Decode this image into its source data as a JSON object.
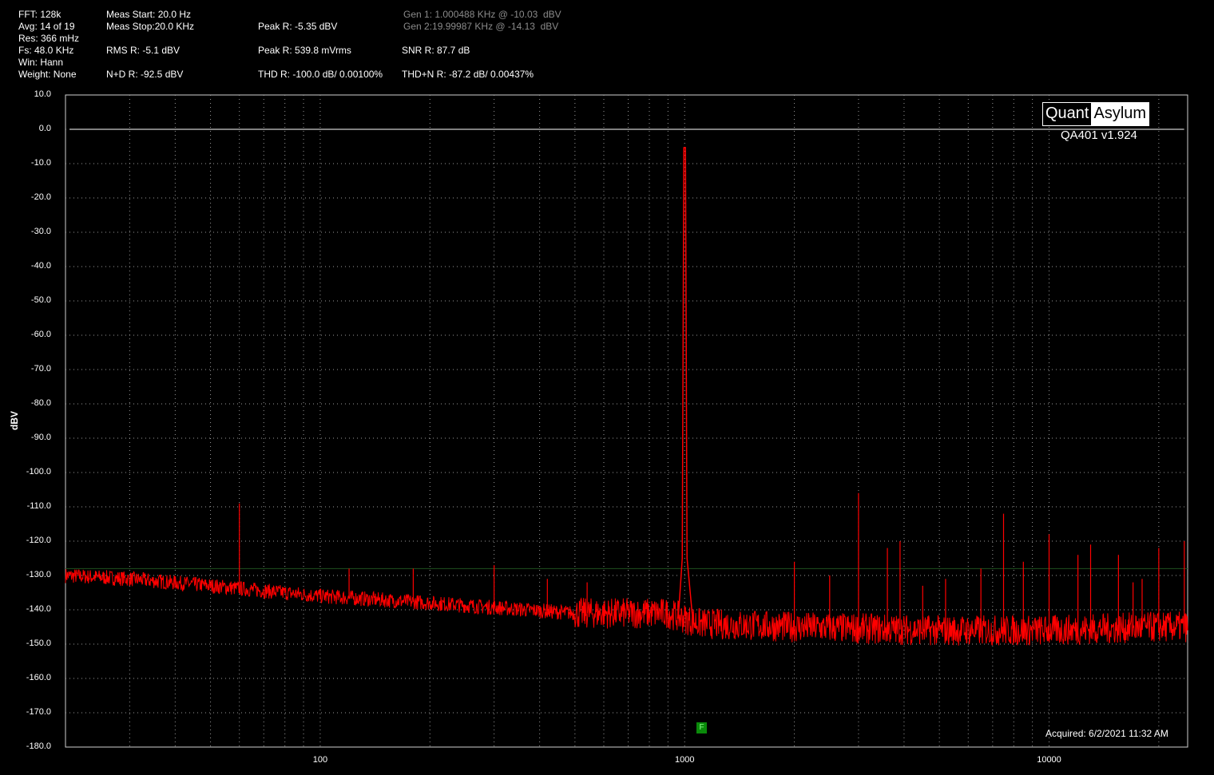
{
  "stats": {
    "fft": "FFT: 128k",
    "avg": "Avg: 14 of 19",
    "res": "Res: 366 mHz",
    "fs": "Fs: 48.0 KHz",
    "win": "Win: Hann",
    "weight": "Weight: None",
    "meas_start": "Meas Start: 20.0 Hz",
    "meas_stop": "Meas Stop:20.0 KHz",
    "rms": "RMS R: -5.1 dBV",
    "nd": "N+D R: -92.5 dBV",
    "peak_dbv": "Peak R: -5.35 dBV",
    "peak_mv": "Peak R: 539.8 mVrms",
    "thd": "THD R: -100.0 dB/ 0.00100%",
    "gen1": "Gen 1: 1.000488 KHz @ -10.03  dBV",
    "gen2": "Gen 2:19.99987 KHz @ -14.13  dBV",
    "snr": "SNR R: 87.7 dB",
    "thdn": "THD+N R: -87.2 dB/ 0.00437%"
  },
  "branding": {
    "logo_left": "Quant",
    "logo_right": "Asylum",
    "version": "QA401 v1.924",
    "acquired": "Acquired: 6/2/2021  11:32 AM",
    "marker": "F"
  },
  "colors": {
    "trace": "#ff0000",
    "grid": "#9a9a9a",
    "reference_line": "#ffffff",
    "dark_trace": "#8b0000",
    "marker": "#0a8a0a"
  },
  "chart_data": {
    "type": "line",
    "xscale": "log",
    "xlim": [
      20,
      24000
    ],
    "ylim": [
      -180,
      10
    ],
    "ylabel": "dBV",
    "xlabel": "",
    "grid": true,
    "reference_line_y": 0,
    "xticks": [
      100,
      1000,
      10000
    ],
    "xtick_labels": [
      "100",
      "1000",
      "10000"
    ],
    "yticks": [
      10,
      0,
      -10,
      -20,
      -30,
      -40,
      -50,
      -60,
      -70,
      -80,
      -90,
      -100,
      -110,
      -120,
      -130,
      -140,
      -150,
      -160,
      -170,
      -180
    ],
    "ytick_labels": [
      "10.0",
      "0.0",
      "-10.0",
      "-20.0",
      "-30.0",
      "-40.0",
      "-50.0",
      "-60.0",
      "-70.0",
      "-80.0",
      "-90.0",
      "-100.0",
      "-110.0",
      "-120.0",
      "-130.0",
      "-140.0",
      "-150.0",
      "-160.0",
      "-170.0",
      "-180.0"
    ],
    "series": [
      {
        "color": "#ff0000",
        "noise_floor": [
          [
            20,
            -130
          ],
          [
            30,
            -131
          ],
          [
            50,
            -133
          ],
          [
            100,
            -136
          ],
          [
            200,
            -138
          ],
          [
            500,
            -141
          ],
          [
            900,
            -141
          ],
          [
            1100,
            -144
          ],
          [
            2000,
            -145
          ],
          [
            5000,
            -146
          ],
          [
            10000,
            -146
          ],
          [
            20000,
            -145
          ],
          [
            24000,
            -145
          ]
        ],
        "peaks": [
          {
            "x": 60,
            "y": -109
          },
          {
            "x": 120,
            "y": -128
          },
          {
            "x": 180,
            "y": -128
          },
          {
            "x": 300,
            "y": -127
          },
          {
            "x": 420,
            "y": -131
          },
          {
            "x": 540,
            "y": -132
          },
          {
            "x": 1000,
            "y": -5.35
          },
          {
            "x": 2000,
            "y": -126
          },
          {
            "x": 2500,
            "y": -130
          },
          {
            "x": 3000,
            "y": -106
          },
          {
            "x": 3600,
            "y": -122
          },
          {
            "x": 3900,
            "y": -120
          },
          {
            "x": 4500,
            "y": -133
          },
          {
            "x": 5200,
            "y": -131
          },
          {
            "x": 6500,
            "y": -128
          },
          {
            "x": 7500,
            "y": -112
          },
          {
            "x": 8500,
            "y": -126
          },
          {
            "x": 10000,
            "y": -118
          },
          {
            "x": 12000,
            "y": -124
          },
          {
            "x": 13000,
            "y": -121
          },
          {
            "x": 15500,
            "y": -124
          },
          {
            "x": 17000,
            "y": -132
          },
          {
            "x": 18000,
            "y": -131
          },
          {
            "x": 20000,
            "y": -122
          },
          {
            "x": 23500,
            "y": -120
          }
        ]
      }
    ]
  }
}
